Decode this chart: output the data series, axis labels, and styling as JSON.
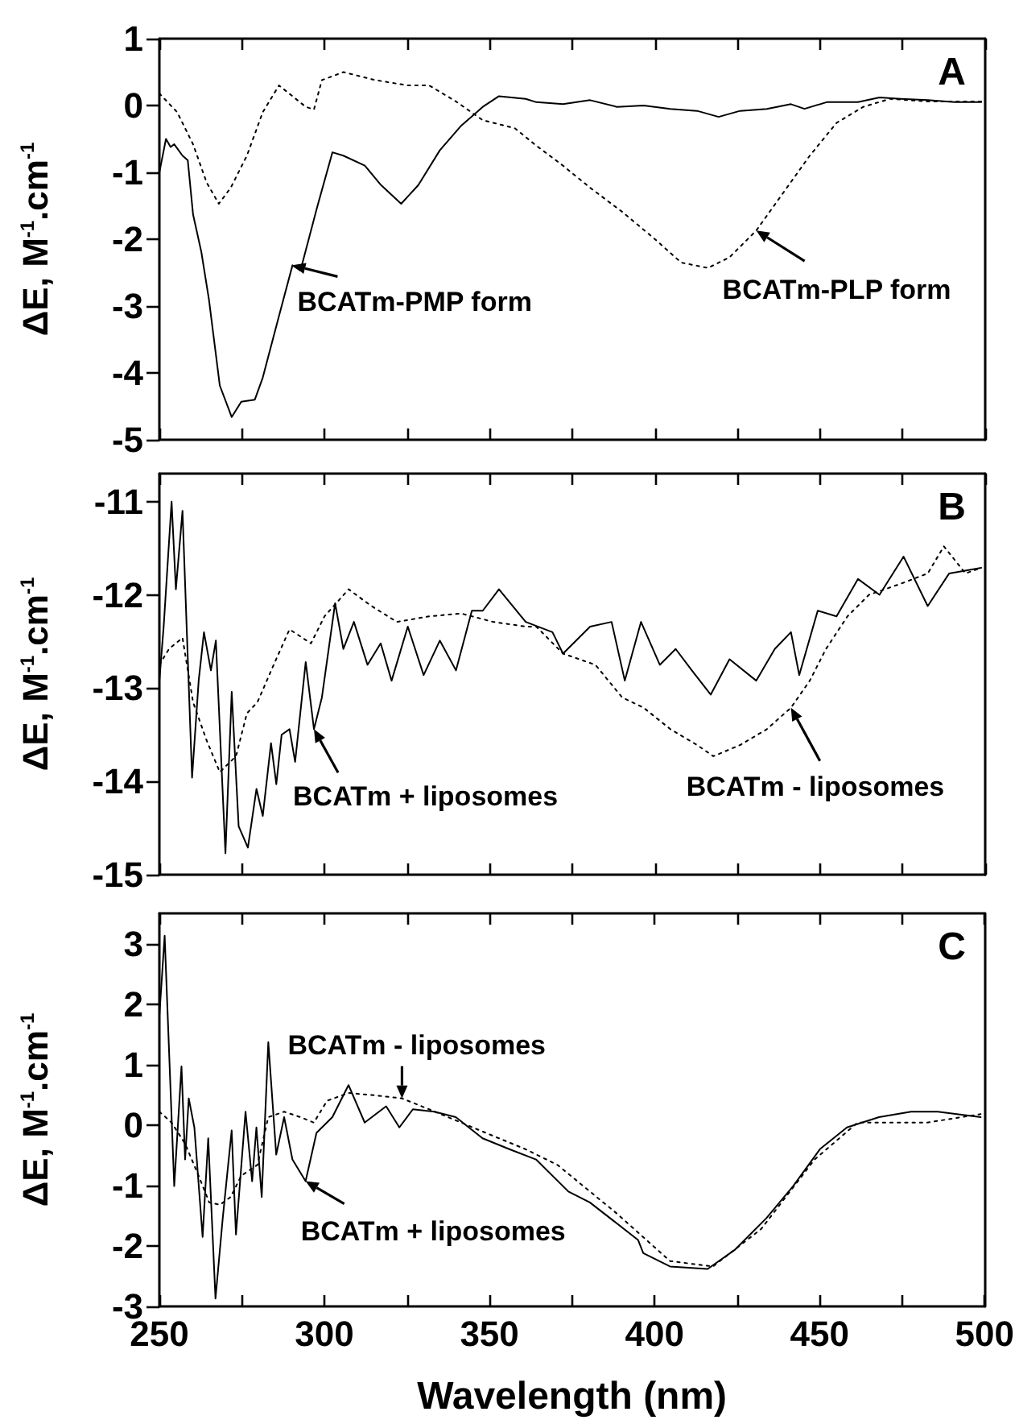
{
  "chart_data": [
    {
      "type": "line",
      "title": "A",
      "ylabel": "ΔE, M$^{-1}$.cm$^{-1}$",
      "xlim": [
        250,
        500
      ],
      "ylim": [
        -5,
        1
      ],
      "tick_labels": "y",
      "xticks": [
        250,
        {
          "value": 275,
          "label": null
        },
        300,
        {
          "value": 325,
          "label": null
        },
        350,
        {
          "value": 375,
          "label": null
        },
        400,
        {
          "value": 425,
          "label": null
        },
        450,
        {
          "value": 475,
          "label": null
        },
        500
      ],
      "yticks": [
        -5,
        -4,
        -3,
        -2,
        -1,
        0,
        1
      ],
      "series": [
        {
          "color": "#000000",
          "line_style": "solid",
          "x": [
            250,
            252,
            253.4,
            254.5,
            257,
            258.6,
            260.2,
            262.7,
            265,
            268.3,
            271.9,
            274.8,
            278.9,
            281.3,
            286.2,
            290.3,
            292.7,
            297.6,
            302.4,
            305.7,
            312.2,
            317.1,
            323.2,
            328.4,
            334.9,
            341.4,
            347.9,
            352.8,
            360.9,
            364.1,
            372.2,
            380.4,
            388.5,
            396.6,
            404.7,
            412.8,
            419.3,
            425.8,
            433.9,
            441.2,
            445.3,
            452,
            461.5,
            468,
            474.5,
            482.6,
            490.7,
            498.8
          ],
          "values": [
            -1.0,
            -0.5,
            -0.62,
            -0.58,
            -0.75,
            -0.82,
            -1.63,
            -2.19,
            -2.9,
            -4.19,
            -4.66,
            -4.43,
            -4.4,
            -4.07,
            -3.15,
            -2.39,
            -2.47,
            -1.55,
            -0.7,
            -0.75,
            -0.9,
            -1.19,
            -1.47,
            -1.19,
            -0.67,
            -0.3,
            -0.02,
            0.14,
            0.1,
            0.05,
            0.02,
            0.08,
            -0.02,
            0.0,
            -0.05,
            -0.08,
            -0.17,
            -0.08,
            -0.05,
            0.02,
            -0.05,
            0.05,
            0.05,
            0.12,
            0.1,
            0.08,
            0.05,
            0.05
          ]
        },
        {
          "color": "#000000",
          "line_style": "dotted",
          "x": [
            250,
            255.4,
            260.2,
            264.3,
            268,
            271.6,
            276.5,
            281.3,
            286.2,
            290.3,
            294.3,
            296.8,
            299.2,
            305.7,
            315.4,
            325.2,
            331.7,
            339.8,
            347.9,
            357.6,
            364.1,
            372.2,
            380.4,
            390.1,
            399.8,
            408,
            416.1,
            422.6,
            430.7,
            438.8,
            446.9,
            455,
            463.1,
            471.2,
            482.6,
            498.8
          ],
          "values": [
            0.18,
            -0.1,
            -0.58,
            -1.15,
            -1.47,
            -1.23,
            -0.75,
            -0.1,
            0.3,
            0.14,
            -0.02,
            -0.06,
            0.38,
            0.5,
            0.38,
            0.3,
            0.3,
            0.06,
            -0.22,
            -0.34,
            -0.6,
            -0.9,
            -1.23,
            -1.59,
            -1.99,
            -2.35,
            -2.43,
            -2.27,
            -1.87,
            -1.31,
            -0.75,
            -0.26,
            -0.02,
            0.1,
            0.06,
            0.06
          ]
        }
      ],
      "annotations": [
        {
          "text": "BCATm-PMP form",
          "x": 290.3,
          "y": -2.39
        },
        {
          "text": "BCATm-PLP form",
          "x": 430.7,
          "y": -1.87
        }
      ]
    },
    {
      "type": "line",
      "title": "B",
      "ylabel": "ΔE, M$^{-1}$.cm$^{-1}$",
      "xlim": [
        250,
        500
      ],
      "ylim": [
        -15,
        -10.7
      ],
      "tick_labels": "y",
      "xticks": [
        250,
        {
          "value": 275,
          "label": null
        },
        300,
        {
          "value": 325,
          "label": null
        },
        350,
        {
          "value": 375,
          "label": null
        },
        400,
        {
          "value": 425,
          "label": null
        },
        450,
        {
          "value": 475,
          "label": null
        },
        500
      ],
      "yticks": [
        -15,
        -14,
        -13,
        -12,
        -11
      ],
      "series": [
        {
          "color": "#000000",
          "line_style": "solid",
          "x": [
            250,
            251.3,
            253.7,
            255,
            257,
            259.9,
            261.9,
            263.5,
            265.6,
            267.1,
            270,
            271.9,
            274,
            276.8,
            279.4,
            281.3,
            283.8,
            285.4,
            287,
            289.4,
            291.1,
            294.3,
            296.8,
            299.2,
            303.2,
            305.7,
            308.9,
            313,
            317,
            320.3,
            325.2,
            330,
            334.9,
            339.8,
            344.6,
            347.9,
            352.8,
            360.9,
            369,
            372.2,
            380.4,
            386.9,
            390.9,
            395.8,
            401.5,
            406.3,
            411.2,
            416.9,
            422.6,
            430.7,
            436.3,
            441.2,
            443.7,
            449.3,
            455,
            461.5,
            468,
            475.3,
            482.6,
            489.1,
            498.8
          ],
          "values": [
            -12.92,
            -12.34,
            -11.0,
            -11.94,
            -11.1,
            -13.96,
            -12.92,
            -12.4,
            -12.81,
            -12.49,
            -14.77,
            -13.04,
            -14.48,
            -14.71,
            -14.08,
            -14.37,
            -13.59,
            -14.03,
            -13.5,
            -13.44,
            -13.79,
            -12.72,
            -13.44,
            -13.1,
            -12.09,
            -12.58,
            -12.29,
            -12.75,
            -12.52,
            -12.92,
            -12.34,
            -12.86,
            -12.49,
            -12.81,
            -12.17,
            -12.17,
            -11.94,
            -12.29,
            -12.4,
            -12.63,
            -12.34,
            -12.29,
            -12.92,
            -12.29,
            -12.75,
            -12.58,
            -12.81,
            -13.07,
            -12.69,
            -12.92,
            -12.58,
            -12.4,
            -12.86,
            -12.17,
            -12.23,
            -11.83,
            -12.0,
            -11.59,
            -12.12,
            -11.77,
            -11.71
          ]
        },
        {
          "color": "#000000",
          "line_style": "dotted",
          "x": [
            250,
            252.9,
            257,
            260.2,
            264.3,
            268.3,
            273.2,
            276.5,
            279.7,
            284.6,
            289.4,
            295.9,
            300,
            307.3,
            313.8,
            321.9,
            331.7,
            341.4,
            351.1,
            360.9,
            364.1,
            372.2,
            382,
            390.1,
            396.6,
            404.7,
            412.8,
            417.7,
            425.8,
            433.9,
            441.2,
            446.9,
            451.8,
            458.3,
            464.8,
            474.5,
            482.6,
            487.5,
            494,
            498.8
          ],
          "values": [
            -12.75,
            -12.58,
            -12.46,
            -13.15,
            -13.56,
            -13.9,
            -13.73,
            -13.27,
            -13.15,
            -12.75,
            -12.37,
            -12.52,
            -12.23,
            -11.94,
            -12.11,
            -12.29,
            -12.23,
            -12.2,
            -12.29,
            -12.34,
            -12.34,
            -12.63,
            -12.75,
            -13.1,
            -13.21,
            -13.44,
            -13.61,
            -13.73,
            -13.61,
            -13.44,
            -13.21,
            -12.92,
            -12.58,
            -12.23,
            -12.0,
            -11.88,
            -11.77,
            -11.48,
            -11.77,
            -11.71
          ]
        }
      ],
      "annotations": [
        {
          "text": "BCATm + liposomes",
          "x": 296.8,
          "y": -13.44
        },
        {
          "text": "BCATm - liposomes",
          "x": 441.2,
          "y": -13.21
        }
      ]
    },
    {
      "type": "line",
      "title": "C",
      "ylabel": "ΔE, M$^{-1}$.cm$^{-1}$",
      "xlabel": "Wavelength (nm)",
      "xlim": [
        250,
        500
      ],
      "ylim": [
        -3,
        3.5
      ],
      "xticks": [
        250,
        {
          "value": 275,
          "label": null
        },
        300,
        {
          "value": 325,
          "label": null
        },
        350,
        {
          "value": 375,
          "label": null
        },
        400,
        {
          "value": 425,
          "label": null
        },
        450,
        {
          "value": 475,
          "label": null
        },
        500
      ],
      "yticks": [
        -3,
        -2,
        -1,
        0,
        1,
        2,
        3
      ],
      "series": [
        {
          "color": "#000000",
          "line_style": "solid",
          "x": [
            250,
            251.6,
            254.5,
            256.7,
            257.8,
            258.9,
            260.6,
            263.1,
            264.8,
            267,
            269.2,
            271.9,
            273.2,
            276.1,
            278.1,
            279.4,
            281,
            283,
            285.4,
            287.8,
            290.3,
            294.3,
            297.6,
            302.4,
            307.3,
            312.2,
            318.7,
            322.7,
            326.8,
            333.3,
            339.8,
            347.9,
            356,
            364.1,
            373.9,
            380.4,
            395,
            396.6,
            404.7,
            416.1,
            424.2,
            433.9,
            442,
            450.1,
            458.3,
            468,
            477.7,
            485.8,
            498.8
          ],
          "values": [
            1.81,
            3.13,
            -1.01,
            0.97,
            -0.57,
            0.44,
            -0.04,
            -1.85,
            -0.22,
            -2.87,
            -1.54,
            -0.09,
            -1.81,
            0.22,
            -0.93,
            -0.04,
            -1.19,
            1.37,
            -0.49,
            0.13,
            -0.57,
            -0.93,
            -0.13,
            0.13,
            0.66,
            0.04,
            0.31,
            -0.04,
            0.26,
            0.22,
            0.13,
            -0.22,
            -0.4,
            -0.57,
            -1.1,
            -1.28,
            -1.9,
            -2.12,
            -2.34,
            -2.38,
            -2.07,
            -1.54,
            -1.01,
            -0.4,
            -0.04,
            0.13,
            0.22,
            0.22,
            0.13
          ]
        },
        {
          "color": "#000000",
          "line_style": "dotted",
          "x": [
            250,
            253.7,
            257.8,
            261.9,
            265.1,
            268.3,
            271.6,
            274.8,
            279.7,
            283,
            287.8,
            292.7,
            296.8,
            300.8,
            307.3,
            315.4,
            323.5,
            331.7,
            341.4,
            351.1,
            360.9,
            370.6,
            388.5,
            404.7,
            417.7,
            432.3,
            448.5,
            461.5,
            482.6,
            498.8
          ],
          "values": [
            0.22,
            0.04,
            -0.31,
            -0.84,
            -1.28,
            -1.32,
            -1.19,
            -0.84,
            -0.66,
            0.13,
            0.22,
            0.13,
            0.04,
            0.4,
            0.53,
            0.49,
            0.44,
            0.26,
            0.04,
            -0.18,
            -0.4,
            -0.66,
            -1.46,
            -2.25,
            -2.34,
            -1.72,
            -0.57,
            0.04,
            0.04,
            0.18
          ]
        }
      ],
      "annotations": [
        {
          "text": "BCATm - liposomes",
          "x": 323.5,
          "y": 0.44
        },
        {
          "text": "BCATm + liposomes",
          "x": 294.3,
          "y": -0.93
        }
      ]
    }
  ]
}
